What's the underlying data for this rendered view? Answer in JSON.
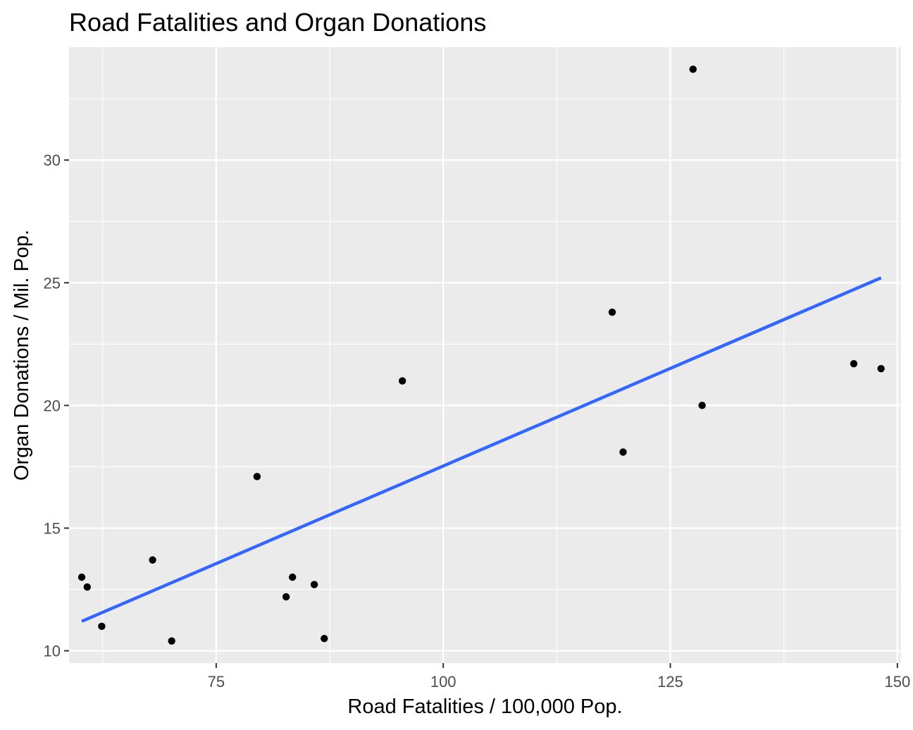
{
  "chart_data": {
    "type": "scatter",
    "title": "Road Fatalities and Organ Donations",
    "xlabel": "Road Fatalities / 100,000 Pop.",
    "ylabel": "Organ Donations / Mil. Pop.",
    "xlim": [
      58.8,
      150.4
    ],
    "ylim": [
      9.5,
      34.6
    ],
    "xticks": [
      75,
      100,
      125,
      150
    ],
    "xtick_labels": [
      "75",
      "100",
      "125",
      "150"
    ],
    "yticks": [
      10,
      15,
      20,
      25,
      30
    ],
    "ytick_labels": [
      "10",
      "15",
      "20",
      "25",
      "30"
    ],
    "grid": true,
    "colors": {
      "panel_background": "#ebebeb",
      "grid_major": "#ffffff",
      "points": "#000000",
      "fit_line": "#3366ff",
      "tick_labels": "#4d4d4d"
    },
    "points": [
      {
        "x": 60.2,
        "y": 13.0
      },
      {
        "x": 60.8,
        "y": 12.6
      },
      {
        "x": 62.4,
        "y": 11.0
      },
      {
        "x": 68.0,
        "y": 13.7
      },
      {
        "x": 70.1,
        "y": 10.4
      },
      {
        "x": 79.5,
        "y": 17.1
      },
      {
        "x": 82.7,
        "y": 12.2
      },
      {
        "x": 83.4,
        "y": 13.0
      },
      {
        "x": 85.8,
        "y": 12.7
      },
      {
        "x": 86.9,
        "y": 10.5
      },
      {
        "x": 95.5,
        "y": 21.0
      },
      {
        "x": 118.6,
        "y": 23.8
      },
      {
        "x": 119.8,
        "y": 18.1
      },
      {
        "x": 127.5,
        "y": 33.7
      },
      {
        "x": 128.5,
        "y": 20.0
      },
      {
        "x": 145.2,
        "y": 21.7
      },
      {
        "x": 148.2,
        "y": 21.5
      }
    ],
    "fit_line": {
      "x": [
        60.2,
        148.2
      ],
      "y": [
        11.2,
        25.2
      ]
    }
  }
}
